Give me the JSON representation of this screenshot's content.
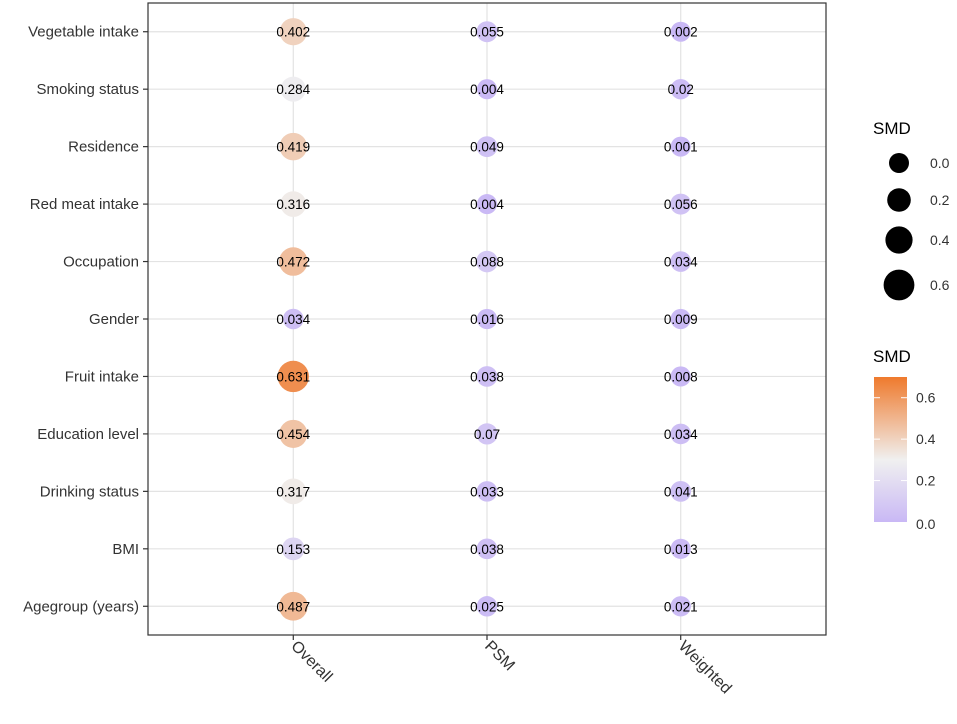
{
  "chart_data": {
    "type": "scatter",
    "title": "",
    "xlabel": "",
    "ylabel": "",
    "x_categories": [
      "Overall",
      "PSM",
      "Weighted"
    ],
    "y_categories": [
      "Vegetable intake",
      "Smoking status",
      "Residence",
      "Red meat intake",
      "Occupation",
      "Gender",
      "Fruit intake",
      "Education level",
      "Drinking status",
      "BMI",
      "Agegroup (years)"
    ],
    "series": [
      {
        "name": "Overall",
        "labels": [
          "0.402",
          "0.284",
          "0.419",
          "0.316",
          "0.472",
          "0.034",
          "0.631",
          "0.454",
          "0.317",
          "0.153",
          "0.487"
        ],
        "values": [
          0.402,
          0.284,
          0.419,
          0.316,
          0.472,
          0.034,
          0.631,
          0.454,
          0.317,
          0.153,
          0.487
        ]
      },
      {
        "name": "PSM",
        "labels": [
          "0.055",
          "0.004",
          "0.049",
          "0.004",
          "0.088",
          "0.016",
          "0.038",
          "0.07",
          "0.033",
          "0.038",
          "0.025"
        ],
        "values": [
          0.055,
          0.004,
          0.049,
          0.004,
          0.088,
          0.016,
          0.038,
          0.07,
          0.033,
          0.038,
          0.025
        ]
      },
      {
        "name": "Weighted",
        "labels": [
          "0.002",
          "0.02",
          "0.001",
          "0.056",
          "0.034",
          "0.009",
          "0.008",
          "0.034",
          "0.041",
          "0.013",
          "0.021"
        ],
        "values": [
          0.002,
          0.02,
          0.001,
          0.056,
          0.034,
          0.009,
          0.008,
          0.034,
          0.041,
          0.013,
          0.021
        ]
      }
    ],
    "size_legend": {
      "title": "SMD",
      "labels": [
        "0.0",
        "0.2",
        "0.4",
        "0.6"
      ],
      "values": [
        0.0,
        0.2,
        0.4,
        0.6
      ]
    },
    "color_legend": {
      "title": "SMD",
      "labels": [
        "0.0",
        "0.2",
        "0.4",
        "0.6"
      ],
      "values": [
        0.0,
        0.2,
        0.4,
        0.6
      ],
      "range": [
        0,
        0.7
      ]
    },
    "colors": {
      "low": "#c9b8f5",
      "mid": "#f0f0f0",
      "high": "#ef7a2d",
      "midpoint": 0.3
    },
    "grid": true,
    "legend_position": "right"
  }
}
